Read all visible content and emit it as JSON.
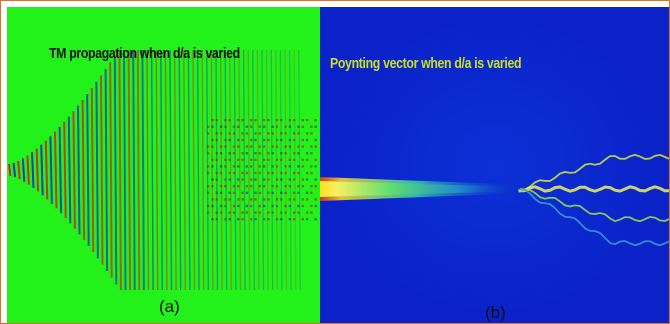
{
  "panels": {
    "a": {
      "title": "TM propagation when d/a is varied",
      "label": "(a)"
    },
    "b": {
      "title": "Poynting vector  when d/a is varied",
      "label": "(b)"
    }
  },
  "colors": {
    "frame": "#d8712a",
    "panel_a_background": "#22f21a",
    "panel_b_background": "#0a22c8",
    "title_b": "#c8e02a"
  }
}
